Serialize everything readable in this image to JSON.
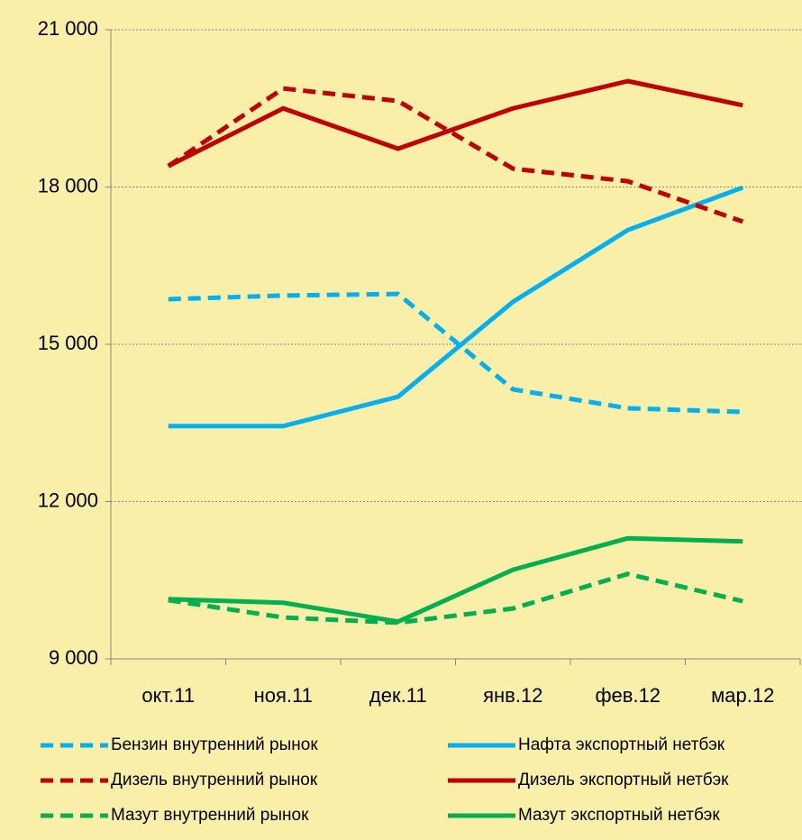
{
  "chart_data": {
    "type": "line",
    "categories": [
      "окт.11",
      "ноя.11",
      "дек.11",
      "янв.12",
      "фев.12",
      "мар.12"
    ],
    "series": [
      {
        "name": "Бензин внутренний рынок",
        "color": "#00b0f0",
        "style": "dashed",
        "values": [
          15860,
          15930,
          15960,
          14140,
          13780,
          13710
        ]
      },
      {
        "name": "Нафта экспортный нетбэк",
        "color": "#00b0f0",
        "style": "solid",
        "values": [
          13440,
          13440,
          14000,
          15810,
          17180,
          17990
        ]
      },
      {
        "name": "Дизель внутренний рынок",
        "color": "#c00000",
        "style": "dashed",
        "values": [
          18400,
          19880,
          19640,
          18350,
          18110,
          17340
        ]
      },
      {
        "name": "Дизель экспортный нетбэк",
        "color": "#c00000",
        "style": "solid",
        "values": [
          18400,
          19500,
          18730,
          19500,
          20020,
          19560
        ]
      },
      {
        "name": "Мазут внутренний рынок",
        "color": "#00b050",
        "style": "dashed",
        "values": [
          10120,
          9790,
          9690,
          9960,
          10620,
          10100
        ]
      },
      {
        "name": "Мазут экспортный нетбэк",
        "color": "#00b050",
        "style": "solid",
        "values": [
          10140,
          10070,
          9710,
          10700,
          11300,
          11240
        ]
      }
    ],
    "ylim": [
      9000,
      21000
    ],
    "yticks": [
      {
        "value": 9000,
        "label": "9 000"
      },
      {
        "value": 12000,
        "label": "12 000"
      },
      {
        "value": 15000,
        "label": "15 000"
      },
      {
        "value": 18000,
        "label": "18 000"
      },
      {
        "value": 21000,
        "label": "21 000"
      }
    ],
    "grid": true,
    "legend": "bottom"
  }
}
